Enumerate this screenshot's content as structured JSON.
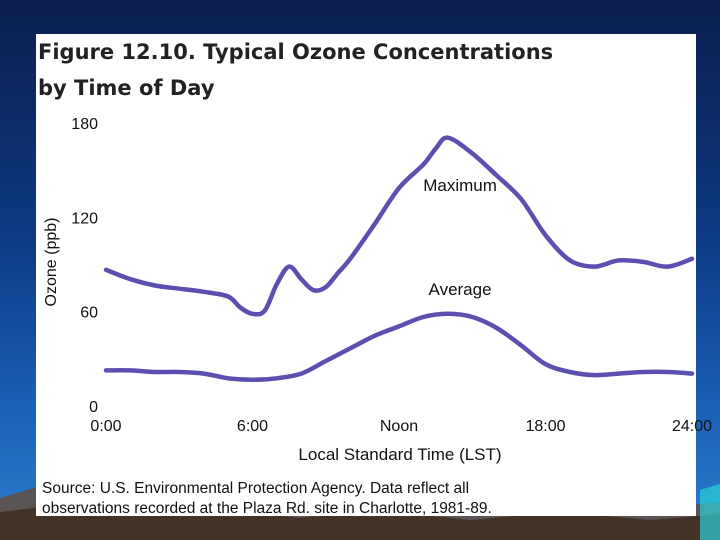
{
  "slide": {
    "background_color": "#0e3b86",
    "figure_label": "Figure 12.10.",
    "title_line1": "Typical Ozone Concentrations",
    "title_line2": "by Time of Day",
    "source_line1": "Source: U.S. Environmental Protection Agency.  Data reflect all",
    "source_line2": "observations recorded at the Plaza Rd. site in Charlotte, 1981-89."
  },
  "chart_data": {
    "type": "line",
    "title": "Typical Ozone Concentrations by Time of Day",
    "xlabel": "Local Standard Time (LST)",
    "ylabel": "Ozone (ppb)",
    "xlim": [
      0,
      24
    ],
    "ylim": [
      0,
      180
    ],
    "x_ticks": [
      {
        "value": 0,
        "label": "0:00"
      },
      {
        "value": 6,
        "label": "6:00"
      },
      {
        "value": 12,
        "label": "Noon"
      },
      {
        "value": 18,
        "label": "18:00"
      },
      {
        "value": 24,
        "label": "24:00"
      }
    ],
    "y_ticks": [
      {
        "value": 0,
        "label": "0"
      },
      {
        "value": 60,
        "label": "60"
      },
      {
        "value": 120,
        "label": "120"
      },
      {
        "value": 180,
        "label": "180"
      }
    ],
    "grid": false,
    "line_color": "#5b4fb0",
    "series": [
      {
        "name": "Maximum",
        "x": [
          0,
          1,
          2,
          3,
          4,
          5,
          5.5,
          6,
          6.5,
          7,
          7.5,
          8,
          8.5,
          9,
          9.5,
          10,
          11,
          12,
          13,
          13.5,
          14,
          15,
          16,
          17,
          18,
          19,
          20,
          21,
          22,
          23,
          24
        ],
        "values": [
          86,
          80,
          76,
          74,
          72,
          69,
          62,
          58,
          60,
          77,
          88,
          80,
          73,
          75,
          84,
          93,
          115,
          138,
          153,
          163,
          170,
          160,
          146,
          131,
          108,
          92,
          88,
          92,
          91,
          88,
          93
        ]
      },
      {
        "name": "Average",
        "x": [
          0,
          1,
          2,
          3,
          4,
          5,
          6,
          7,
          8,
          9,
          10,
          11,
          12,
          13,
          14,
          15,
          16,
          17,
          18,
          19,
          20,
          21,
          22,
          23,
          24
        ],
        "values": [
          22,
          22,
          21,
          21,
          20,
          17,
          16,
          17,
          20,
          28,
          36,
          44,
          50,
          56,
          58,
          56,
          49,
          38,
          26,
          21,
          19,
          20,
          21,
          21,
          20
        ]
      }
    ],
    "annotations": [
      {
        "text": "Maximum",
        "x": 14.5,
        "y": 136
      },
      {
        "text": "Average",
        "x": 14.5,
        "y": 70
      }
    ]
  }
}
